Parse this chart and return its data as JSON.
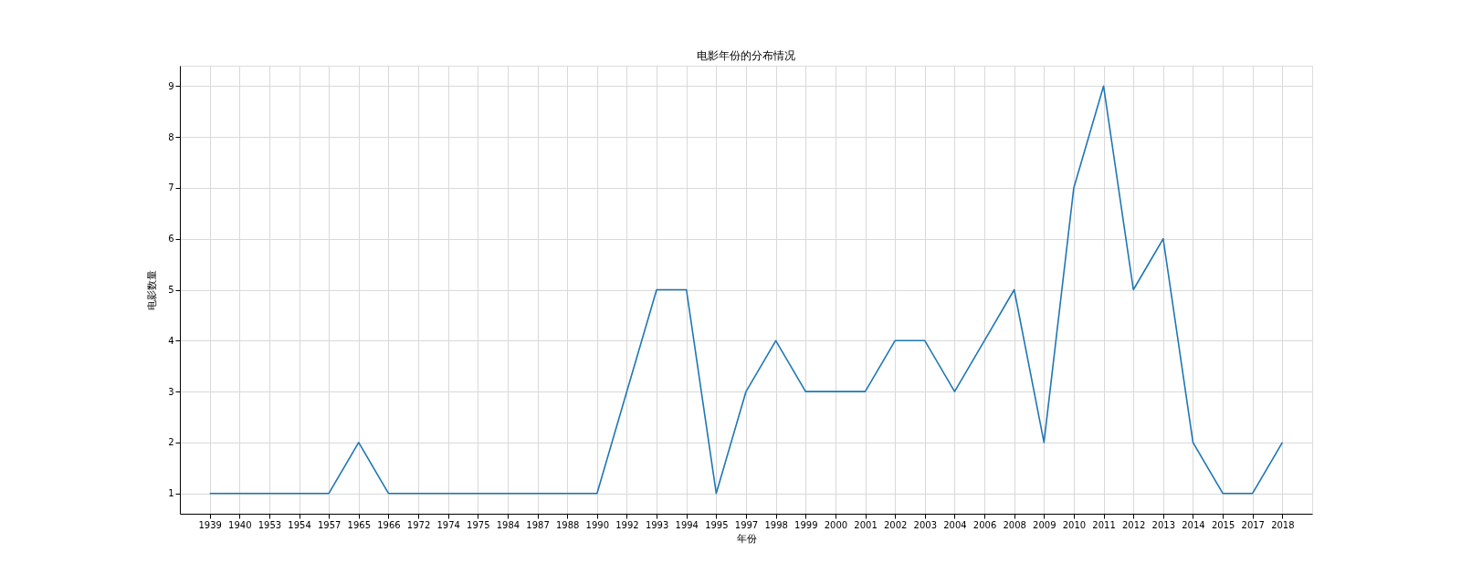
{
  "chart_data": {
    "type": "line",
    "title": "电影年份的分布情况",
    "xlabel": "年份",
    "ylabel": "电影数量",
    "categories": [
      "1939",
      "1940",
      "1953",
      "1954",
      "1957",
      "1965",
      "1966",
      "1972",
      "1974",
      "1975",
      "1984",
      "1987",
      "1988",
      "1990",
      "1992",
      "1993",
      "1994",
      "1995",
      "1997",
      "1998",
      "1999",
      "2000",
      "2001",
      "2002",
      "2003",
      "2004",
      "2006",
      "2008",
      "2009",
      "2010",
      "2011",
      "2012",
      "2013",
      "2014",
      "2015",
      "2017",
      "2018"
    ],
    "series": [
      {
        "color": "#1f77b4",
        "values": [
          1,
          1,
          1,
          1,
          1,
          2,
          1,
          1,
          1,
          1,
          1,
          1,
          1,
          1,
          3,
          5,
          5,
          1,
          3,
          4,
          3,
          3,
          3,
          4,
          4,
          3,
          4,
          5,
          2,
          7,
          9,
          5,
          6,
          2,
          1,
          1,
          2
        ]
      }
    ],
    "ylim": [
      0.6,
      9.4
    ],
    "yticks": [
      1,
      2,
      3,
      4,
      5,
      6,
      7,
      8,
      9
    ],
    "grid": true,
    "marker": "none",
    "line_style": "solid"
  }
}
